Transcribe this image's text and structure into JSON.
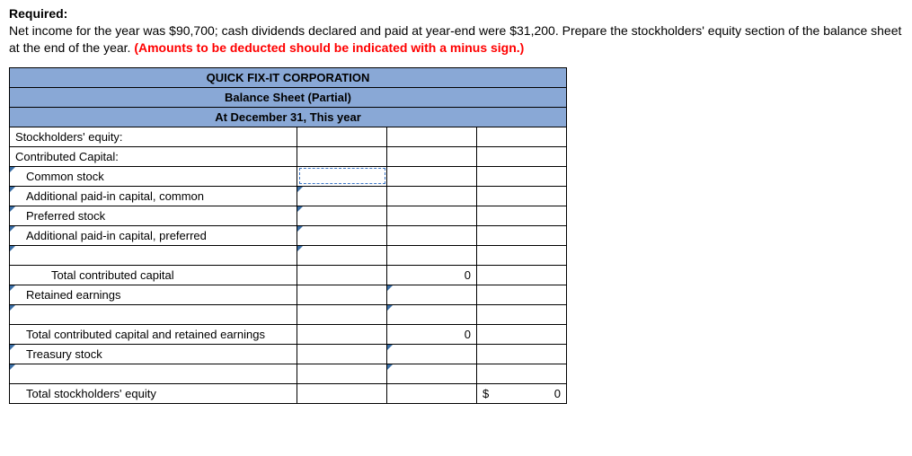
{
  "header": {
    "required_label": "Required:",
    "instructions_part1": "Net income for the year was $90,700; cash dividends declared and paid at year-end were $31,200. Prepare the stockholders' equity section of the balance sheet at the end of the year. ",
    "instructions_red": "(Amounts to be deducted should be indicated with a minus sign.)"
  },
  "sheet": {
    "title1": "QUICK FIX-IT CORPORATION",
    "title2": "Balance Sheet (Partial)",
    "title3": "At December 31, This year",
    "rows": {
      "stockholders_equity": "Stockholders' equity:",
      "contributed_capital": "Contributed Capital:",
      "common_stock": "Common stock",
      "apic_common": "Additional paid-in capital, common",
      "preferred_stock": "Preferred stock",
      "apic_preferred": "Additional paid-in capital, preferred",
      "total_contributed": "Total contributed capital",
      "retained_earnings": "Retained earnings",
      "total_cc_re": "Total contributed capital and retained earnings",
      "treasury_stock": "Treasury stock",
      "total_se": "Total stockholders' equity"
    },
    "values": {
      "total_contributed": "0",
      "total_cc_re": "0",
      "total_se_dollar": "$",
      "total_se": "0"
    },
    "colors": {
      "header_bg": "#89a8d6",
      "border": "#000000",
      "red": "#ff0000",
      "dashed": "#3a74c4"
    }
  }
}
